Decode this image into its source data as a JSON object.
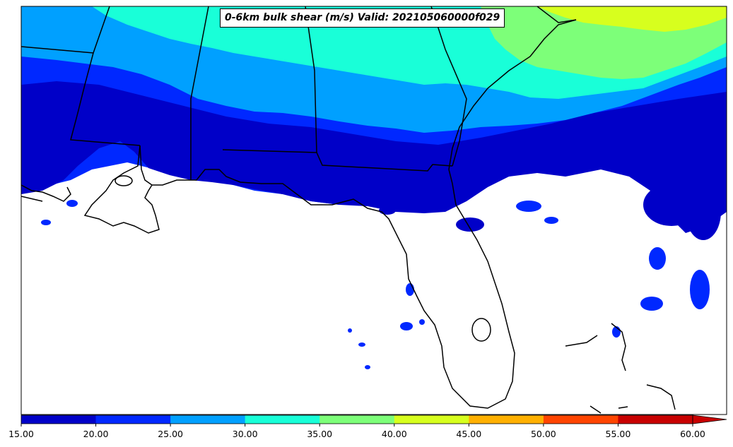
{
  "title": "0-6km bulk shear (m/s) Valid: 202105060000f029",
  "colorbar": {
    "levels": [
      "15.00",
      "20.00",
      "25.00",
      "30.00",
      "35.00",
      "40.00",
      "45.00",
      "50.00",
      "55.00",
      "60.00"
    ],
    "colors": [
      "#0000c8",
      "#0028ff",
      "#00a0ff",
      "#19ffd8",
      "#7dff79",
      "#d7ff1e",
      "#ffb000",
      "#ff4500",
      "#c80000"
    ],
    "extend": "max"
  },
  "fill_colors": {
    "15-20": "#0000c8",
    "20-25": "#0028ff",
    "25-30": "#00a0ff",
    "30-35": "#19ffd8",
    "35-40": "#7dff79",
    "40-45": "#d7ff1e"
  }
}
